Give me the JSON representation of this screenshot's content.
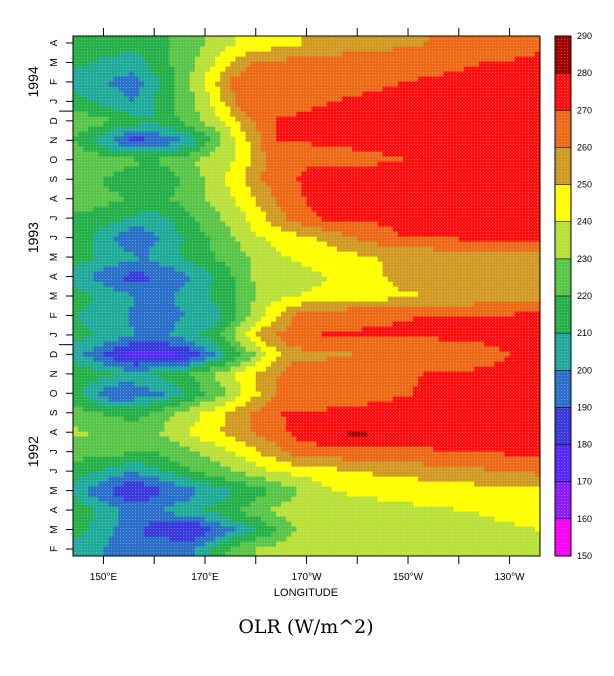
{
  "chart_data": {
    "type": "heatmap",
    "title": "OLR (W/m^2)",
    "xlabel": "LONGITUDE",
    "ylabel": "",
    "x_axis": {
      "lim_deg_east": [
        144,
        236
      ],
      "ticks": [
        {
          "value": 150,
          "label": "150°E"
        },
        {
          "value": 170,
          "label": "170°E"
        },
        {
          "value": 190,
          "label": "170°W"
        },
        {
          "value": 210,
          "label": "150°W"
        },
        {
          "value": 230,
          "label": "130°W"
        }
      ],
      "minor_ticks": [
        160,
        180,
        200,
        220
      ]
    },
    "y_axis": {
      "start": "1992-02",
      "end": "1994-04",
      "month_labels": [
        {
          "month": "1992-02",
          "label": "F"
        },
        {
          "month": "1992-03",
          "label": "M"
        },
        {
          "month": "1992-04",
          "label": "A"
        },
        {
          "month": "1992-05",
          "label": "M"
        },
        {
          "month": "1992-06",
          "label": "J"
        },
        {
          "month": "1992-07",
          "label": "J"
        },
        {
          "month": "1992-08",
          "label": "A"
        },
        {
          "month": "1992-09",
          "label": "S"
        },
        {
          "month": "1992-10",
          "label": "O"
        },
        {
          "month": "1992-11",
          "label": "N"
        },
        {
          "month": "1992-12",
          "label": "D"
        },
        {
          "month": "1993-01",
          "label": "J"
        },
        {
          "month": "1993-02",
          "label": "F"
        },
        {
          "month": "1993-03",
          "label": "M"
        },
        {
          "month": "1993-04",
          "label": "A"
        },
        {
          "month": "1993-05",
          "label": "M"
        },
        {
          "month": "1993-06",
          "label": "J"
        },
        {
          "month": "1993-07",
          "label": "J"
        },
        {
          "month": "1993-08",
          "label": "A"
        },
        {
          "month": "1993-09",
          "label": "S"
        },
        {
          "month": "1993-10",
          "label": "O"
        },
        {
          "month": "1993-11",
          "label": "N"
        },
        {
          "month": "1993-12",
          "label": "D"
        },
        {
          "month": "1994-01",
          "label": "J"
        },
        {
          "month": "1994-02",
          "label": "F"
        },
        {
          "month": "1994-03",
          "label": "M"
        },
        {
          "month": "1994-04",
          "label": "A"
        }
      ],
      "year_labels": [
        {
          "label": "1992",
          "month": "1992-07"
        },
        {
          "label": "1993",
          "month": "1993-06"
        },
        {
          "label": "1994",
          "month": "1994-02"
        }
      ]
    },
    "colorbar": {
      "levels": [
        150,
        160,
        170,
        180,
        190,
        200,
        210,
        220,
        230,
        240,
        250,
        260,
        270,
        280,
        290
      ],
      "colors": [
        "#ff00ff",
        "#8c1cff",
        "#5a28ff",
        "#3a3adc",
        "#2a70c8",
        "#1faa9a",
        "#26b04a",
        "#58c448",
        "#b8e038",
        "#ffff00",
        "#d09a22",
        "#ec6a18",
        "#ff1010",
        "#a00000"
      ]
    },
    "field": {
      "units": "W/m^2",
      "description_rows": [
        {
          "month": "1992-02",
          "profile": [
            [
              144,
              205
            ],
            [
              156,
              195
            ],
            [
              168,
              200
            ],
            [
              176,
              225
            ],
            [
              188,
              240
            ],
            [
              236,
              238
            ]
          ]
        },
        {
          "month": "1992-03",
          "profile": [
            [
              144,
              215
            ],
            [
              160,
              185
            ],
            [
              168,
              180
            ],
            [
              176,
              200
            ],
            [
              190,
              235
            ],
            [
              236,
              240
            ]
          ]
        },
        {
          "month": "1992-04",
          "profile": [
            [
              144,
              220
            ],
            [
              156,
              195
            ],
            [
              170,
              210
            ],
            [
              186,
              235
            ],
            [
              236,
              242
            ]
          ]
        },
        {
          "month": "1992-05",
          "profile": [
            [
              144,
              205
            ],
            [
              156,
              180
            ],
            [
              166,
              195
            ],
            [
              180,
              215
            ],
            [
              195,
              240
            ],
            [
              236,
              248
            ]
          ]
        },
        {
          "month": "1992-06",
          "profile": [
            [
              144,
              215
            ],
            [
              156,
              200
            ],
            [
              168,
              220
            ],
            [
              184,
              240
            ],
            [
              200,
              250
            ],
            [
              236,
              262
            ]
          ]
        },
        {
          "month": "1992-07",
          "profile": [
            [
              144,
              225
            ],
            [
              160,
              220
            ],
            [
              176,
              240
            ],
            [
              188,
              265
            ],
            [
              236,
              272
            ]
          ]
        },
        {
          "month": "1992-08",
          "profile": [
            [
              144,
              232
            ],
            [
              158,
              225
            ],
            [
              176,
              255
            ],
            [
              190,
              275
            ],
            [
              200,
              282
            ],
            [
              210,
              276
            ],
            [
              236,
              272
            ]
          ]
        },
        {
          "month": "1992-09",
          "profile": [
            [
              144,
              225
            ],
            [
              156,
              215
            ],
            [
              172,
              245
            ],
            [
              184,
              270
            ],
            [
              236,
              272
            ]
          ]
        },
        {
          "month": "1992-10",
          "profile": [
            [
              144,
              215
            ],
            [
              152,
              190
            ],
            [
              162,
              200
            ],
            [
              176,
              235
            ],
            [
              186,
              268
            ],
            [
              236,
              272
            ]
          ]
        },
        {
          "month": "1992-11",
          "profile": [
            [
              144,
              220
            ],
            [
              156,
              205
            ],
            [
              170,
              225
            ],
            [
              180,
              250
            ],
            [
              188,
              268
            ],
            [
              236,
              272
            ]
          ]
        },
        {
          "month": "1992-12",
          "profile": [
            [
              144,
              205
            ],
            [
              156,
              175
            ],
            [
              166,
              180
            ],
            [
              176,
              215
            ],
            [
              186,
              255
            ],
            [
              236,
              272
            ]
          ]
        },
        {
          "month": "1993-01",
          "profile": [
            [
              144,
              215
            ],
            [
              160,
              195
            ],
            [
              172,
              215
            ],
            [
              182,
              258
            ],
            [
              190,
              270
            ],
            [
              236,
              272
            ]
          ]
        },
        {
          "month": "1993-02",
          "profile": [
            [
              144,
              210
            ],
            [
              160,
              195
            ],
            [
              172,
              205
            ],
            [
              180,
              235
            ],
            [
              190,
              268
            ],
            [
              236,
              272
            ]
          ]
        },
        {
          "month": "1993-03",
          "profile": [
            [
              144,
              215
            ],
            [
              160,
              195
            ],
            [
              172,
              212
            ],
            [
              184,
              238
            ],
            [
              200,
              245
            ],
            [
              236,
              258
            ]
          ]
        },
        {
          "month": "1993-04",
          "profile": [
            [
              144,
              205
            ],
            [
              156,
              185
            ],
            [
              168,
              200
            ],
            [
              180,
              232
            ],
            [
              198,
              242
            ],
            [
              210,
              255
            ],
            [
              236,
              258
            ]
          ]
        },
        {
          "month": "1993-05",
          "profile": [
            [
              144,
              215
            ],
            [
              158,
              200
            ],
            [
              172,
              220
            ],
            [
              186,
              240
            ],
            [
              204,
              250
            ],
            [
              236,
              255
            ]
          ]
        },
        {
          "month": "1993-06",
          "profile": [
            [
              144,
              220
            ],
            [
              156,
              190
            ],
            [
              168,
              215
            ],
            [
              180,
              238
            ],
            [
              196,
              255
            ],
            [
              208,
              270
            ],
            [
              236,
              272
            ]
          ]
        },
        {
          "month": "1993-07",
          "profile": [
            [
              144,
              218
            ],
            [
              160,
              205
            ],
            [
              176,
              235
            ],
            [
              186,
              260
            ],
            [
              194,
              272
            ],
            [
              236,
              272
            ]
          ]
        },
        {
          "month": "1993-08",
          "profile": [
            [
              144,
              228
            ],
            [
              160,
              215
            ],
            [
              176,
              240
            ],
            [
              186,
              265
            ],
            [
              194,
              276
            ],
            [
              236,
              272
            ]
          ]
        },
        {
          "month": "1993-09",
          "profile": [
            [
              144,
              225
            ],
            [
              160,
              210
            ],
            [
              172,
              235
            ],
            [
              182,
              262
            ],
            [
              190,
              272
            ],
            [
              236,
              272
            ]
          ]
        },
        {
          "month": "1993-10",
          "profile": [
            [
              144,
              230
            ],
            [
              160,
              220
            ],
            [
              176,
              240
            ],
            [
              184,
              268
            ],
            [
              236,
              272
            ]
          ]
        },
        {
          "month": "1993-11",
          "profile": [
            [
              144,
              220
            ],
            [
              156,
              185
            ],
            [
              166,
              200
            ],
            [
              176,
              240
            ],
            [
              184,
              270
            ],
            [
              236,
              272
            ]
          ]
        },
        {
          "month": "1993-12",
          "profile": [
            [
              144,
              230
            ],
            [
              160,
              210
            ],
            [
              174,
              240
            ],
            [
              182,
              270
            ],
            [
              236,
              274
            ]
          ]
        },
        {
          "month": "1994-01",
          "profile": [
            [
              144,
              215
            ],
            [
              156,
              200
            ],
            [
              170,
              235
            ],
            [
              178,
              268
            ],
            [
              236,
              275
            ]
          ]
        },
        {
          "month": "1994-02",
          "profile": [
            [
              144,
              205
            ],
            [
              156,
              195
            ],
            [
              166,
              225
            ],
            [
              176,
              265
            ],
            [
              236,
              274
            ]
          ]
        },
        {
          "month": "1994-03",
          "profile": [
            [
              144,
              212
            ],
            [
              156,
              205
            ],
            [
              168,
              230
            ],
            [
              180,
              262
            ],
            [
              236,
              272
            ]
          ]
        },
        {
          "month": "1994-04",
          "profile": [
            [
              144,
              212
            ],
            [
              160,
              215
            ],
            [
              176,
              240
            ],
            [
              192,
              252
            ],
            [
              236,
              268
            ]
          ]
        }
      ]
    }
  }
}
